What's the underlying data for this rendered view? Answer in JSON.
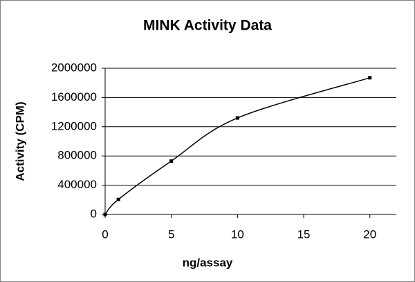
{
  "chart_data": {
    "type": "line",
    "title": "MINK Activity Data",
    "x_label": "ng/assay",
    "y_label": "Activity (CPM)",
    "x": [
      0,
      1,
      5,
      10,
      20
    ],
    "series": [
      {
        "color": "#000000",
        "values": [
          0,
          205000,
          730000,
          1320000,
          1870000
        ]
      }
    ],
    "xlim": [
      0,
      22
    ],
    "xticks": [
      0,
      5,
      10,
      15,
      20
    ],
    "ylim": [
      0,
      2000000
    ],
    "yticks": [
      0,
      400000,
      800000,
      1200000,
      1600000,
      2000000
    ],
    "grid": true,
    "smooth": true
  }
}
